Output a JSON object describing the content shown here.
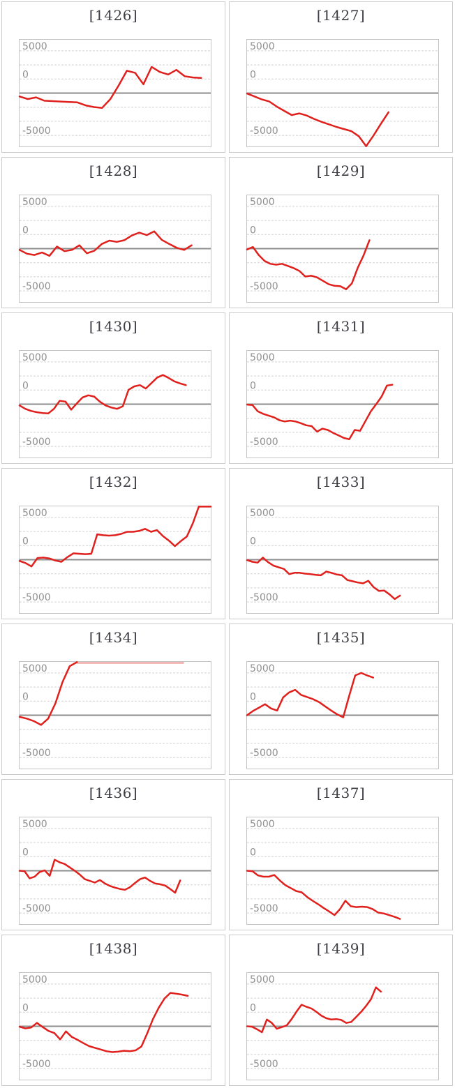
{
  "page": {
    "background": "#ffffff",
    "layout": "2x7 grid of machine differential line charts"
  },
  "chart_defaults": {
    "type": "line",
    "y_axis_labels": [
      "5000",
      "0",
      "-5000"
    ],
    "y_gridline_values": [
      5000,
      3333,
      1667,
      0,
      -1667,
      -3333,
      -5000
    ],
    "ylim": [
      -6300,
      6300
    ],
    "grid": "dashed-horizontal",
    "legend": "none",
    "x_axis_labels": "none",
    "line_color": "#e0201c",
    "clipped_line_color": "#efa9a6",
    "grid_color": "#d2d2d2",
    "zero_line_color": "#8c8c8c",
    "box_border_color": "#c4c4c4",
    "panel_border_color": "#cbcbcb",
    "title_color": "#3d3d44",
    "label_color": "#8f8f8f"
  },
  "chart_data": [
    {
      "type": "line",
      "title": "[1426]",
      "span": 0.95,
      "values": [
        -400,
        -700,
        -500,
        -900,
        -950,
        -1000,
        -1050,
        -1100,
        -1450,
        -1650,
        -1750,
        -700,
        900,
        2650,
        2400,
        1050,
        3100,
        2500,
        2200,
        2750,
        2000,
        1850,
        1800
      ]
    },
    {
      "type": "line",
      "title": "[1427]",
      "span": 0.74,
      "values": [
        -50,
        -400,
        -750,
        -1000,
        -1600,
        -2100,
        -2600,
        -2400,
        -2650,
        -3050,
        -3400,
        -3700,
        -4000,
        -4250,
        -4500,
        -5100,
        -6300,
        -5000,
        -3600,
        -2250
      ]
    },
    {
      "type": "line",
      "title": "[1428]",
      "span": 0.9,
      "values": [
        -150,
        -600,
        -750,
        -450,
        -850,
        250,
        -300,
        -150,
        400,
        -550,
        -250,
        550,
        950,
        800,
        1000,
        1550,
        1900,
        1600,
        2050,
        1050,
        550,
        100,
        -150,
        400
      ]
    },
    {
      "type": "line",
      "title": "[1429]",
      "span": 0.64,
      "values": [
        -100,
        200,
        -750,
        -1450,
        -1800,
        -1900,
        -1800,
        -2050,
        -2300,
        -2650,
        -3300,
        -3200,
        -3400,
        -3800,
        -4200,
        -4400,
        -4450,
        -4800,
        -4100,
        -2250,
        -800,
        1000
      ]
    },
    {
      "type": "line",
      "title": "[1430]",
      "span": 0.87,
      "values": [
        -150,
        -550,
        -800,
        -950,
        -1050,
        -1100,
        -550,
        400,
        300,
        -650,
        100,
        800,
        1050,
        900,
        300,
        -150,
        -400,
        -550,
        -250,
        1700,
        2100,
        2250,
        1850,
        2500,
        3150,
        3450,
        3100,
        2700,
        2450,
        2250
      ]
    },
    {
      "type": "line",
      "title": "[1431]",
      "span": 0.76,
      "values": [
        -50,
        -100,
        -850,
        -1150,
        -1350,
        -1550,
        -1900,
        -2050,
        -1950,
        -2050,
        -2250,
        -2500,
        -2600,
        -3250,
        -2900,
        -3050,
        -3400,
        -3700,
        -4000,
        -4150,
        -3050,
        -3150,
        -2000,
        -850,
        0,
        900,
        2200,
        2300
      ]
    },
    {
      "type": "line",
      "title": "[1432]",
      "span": 1.0,
      "values": [
        -150,
        -400,
        -800,
        200,
        250,
        150,
        -100,
        -250,
        300,
        750,
        700,
        650,
        700,
        3000,
        2900,
        2850,
        2900,
        3050,
        3300,
        3300,
        3400,
        3650,
        3300,
        3500,
        2800,
        2250,
        1600,
        2200,
        2750,
        4300,
        6300,
        6500,
        6500
      ]
    },
    {
      "type": "line",
      "title": "[1433]",
      "span": 0.8,
      "values": [
        -50,
        -250,
        -350,
        250,
        -300,
        -700,
        -900,
        -1100,
        -1700,
        -1550,
        -1550,
        -1650,
        -1700,
        -1800,
        -1850,
        -1400,
        -1550,
        -1750,
        -1850,
        -2400,
        -2550,
        -2700,
        -2800,
        -2500,
        -3250,
        -3700,
        -3650,
        -4100,
        -4650,
        -4250
      ]
    },
    {
      "type": "line",
      "title": "[1434]",
      "span": 0.3,
      "values": [
        -200,
        -400,
        -700,
        -1150,
        -400,
        1400,
        3950,
        5800,
        6500
      ],
      "top_clip": {
        "from": 0.3,
        "to": 0.86
      }
    },
    {
      "type": "line",
      "title": "[1435]",
      "span": 0.66,
      "values": [
        0,
        500,
        900,
        1300,
        800,
        550,
        2100,
        2700,
        3000,
        2400,
        2150,
        1900,
        1550,
        1050,
        550,
        100,
        -250,
        2300,
        4700,
        5000,
        4700,
        4450
      ]
    },
    {
      "type": "line",
      "title": "[1436]",
      "span": 0.84,
      "values": [
        0,
        -50,
        -900,
        -700,
        -150,
        50,
        -600,
        1300,
        1000,
        800,
        400,
        0,
        -450,
        -1000,
        -1200,
        -1400,
        -1100,
        -1500,
        -1800,
        -2000,
        -2150,
        -2250,
        -1950,
        -1450,
        -1000,
        -800,
        -1200,
        -1500,
        -1600,
        -1750,
        -2150,
        -2600,
        -1150
      ]
    },
    {
      "type": "line",
      "title": "[1437]",
      "span": 0.8,
      "values": [
        0,
        -50,
        -550,
        -700,
        -700,
        -500,
        -1150,
        -1700,
        -2050,
        -2400,
        -2550,
        -3100,
        -3550,
        -3950,
        -4400,
        -4800,
        -5250,
        -4550,
        -3550,
        -4200,
        -4300,
        -4250,
        -4300,
        -4550,
        -4950,
        -5050,
        -5250,
        -5450,
        -5700
      ]
    },
    {
      "type": "line",
      "title": "[1438]",
      "span": 0.88,
      "values": [
        -50,
        -250,
        -150,
        400,
        -100,
        -550,
        -800,
        -1550,
        -600,
        -1250,
        -1600,
        -2000,
        -2350,
        -2550,
        -2750,
        -2950,
        -3050,
        -3000,
        -2900,
        -2950,
        -2850,
        -2400,
        -850,
        850,
        2200,
        3300,
        3950,
        3850,
        3750,
        3600
      ]
    },
    {
      "type": "line",
      "title": "[1439]",
      "span": 0.7,
      "values": [
        0,
        -50,
        -350,
        -700,
        800,
        400,
        -300,
        -100,
        100,
        850,
        1750,
        2550,
        2300,
        2100,
        1700,
        1250,
        950,
        800,
        850,
        750,
        400,
        500,
        1100,
        1700,
        2400,
        3200,
        4600,
        4100
      ]
    }
  ]
}
